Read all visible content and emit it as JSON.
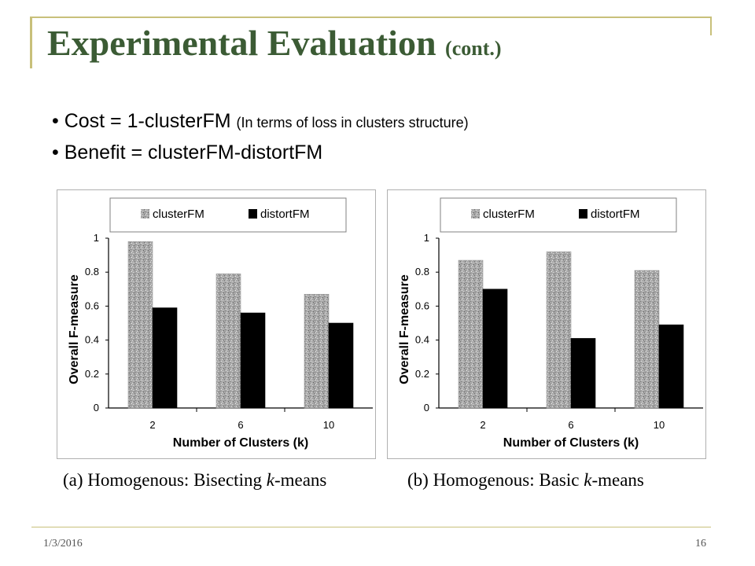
{
  "slide": {
    "title_main": "Experimental Evaluation",
    "title_suffix": "(cont.)",
    "bullets": [
      {
        "main": "Cost = 1-clusterFM",
        "note": "(In terms of loss in clusters structure)"
      },
      {
        "main": "Benefit = clusterFM-distortFM",
        "note": ""
      }
    ],
    "footer_date": "1/3/2016",
    "page_number": "16"
  },
  "colors": {
    "title": "#3b5b34",
    "accent_line": "#c8c07a",
    "clusterFM_fill": "#a8a8a8",
    "distortFM_fill": "#000000"
  },
  "chart_data": [
    {
      "type": "bar",
      "categories": [
        "2",
        "6",
        "10"
      ],
      "series": [
        {
          "name": "clusterFM",
          "values": [
            0.98,
            0.79,
            0.67
          ]
        },
        {
          "name": "distortFM",
          "values": [
            0.59,
            0.56,
            0.5
          ]
        }
      ],
      "xlabel": "Number of Clusters (k)",
      "ylabel": "Overall F-measure",
      "ylim": [
        0,
        1
      ],
      "yticks": [
        "0",
        "0.2",
        "0.4",
        "0.6",
        "0.8",
        "1"
      ],
      "legend": "top",
      "grid": false,
      "caption": {
        "prefix": "(a)  Homogenous:  Bisecting ",
        "k": "k",
        "suffix": "-means"
      }
    },
    {
      "type": "bar",
      "categories": [
        "2",
        "6",
        "10"
      ],
      "series": [
        {
          "name": "clusterFM",
          "values": [
            0.87,
            0.92,
            0.81
          ]
        },
        {
          "name": "distortFM",
          "values": [
            0.7,
            0.41,
            0.49
          ]
        }
      ],
      "xlabel": "Number of Clusters (k)",
      "ylabel": "Overall F-measure",
      "ylim": [
        0,
        1
      ],
      "yticks": [
        "0",
        "0.2",
        "0.4",
        "0.6",
        "0.8",
        "1"
      ],
      "legend": "top",
      "grid": false,
      "caption": {
        "prefix": "(b)  Homogenous:  Basic ",
        "k": "k",
        "suffix": "-means"
      }
    }
  ]
}
